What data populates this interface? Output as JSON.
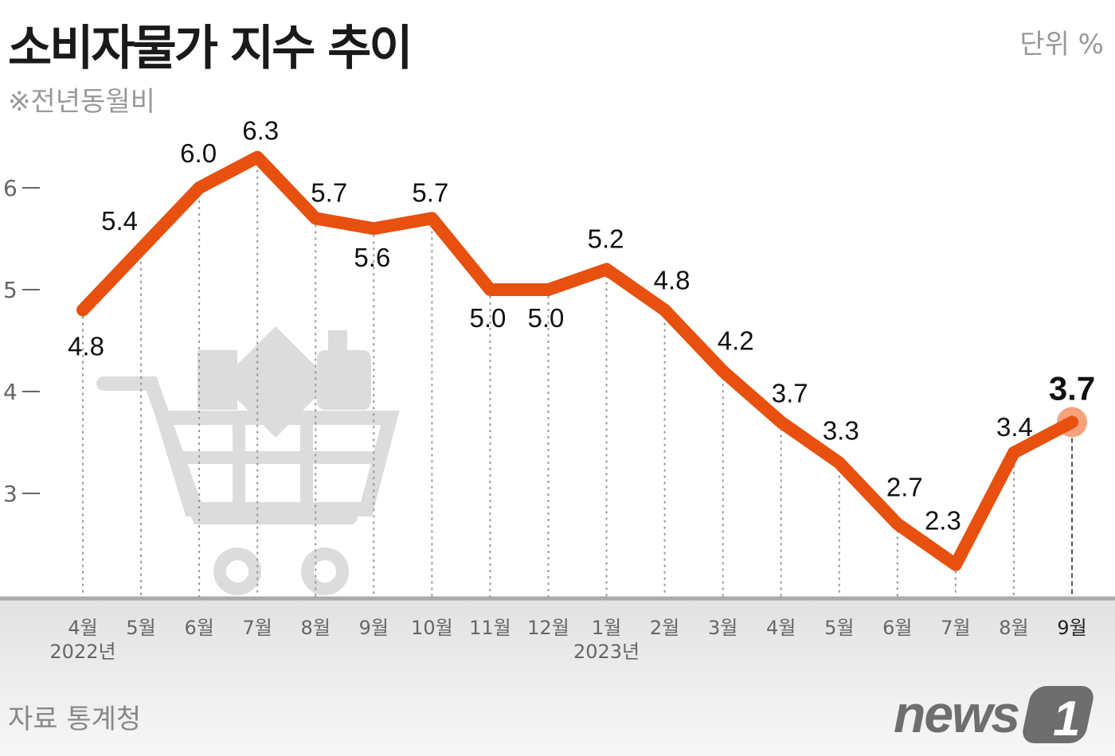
{
  "title": "소비자물가 지수 추이",
  "subtitle": "※전년동월비",
  "unit": "단위 %",
  "source": "자료 통계청",
  "logo_text": "news1",
  "colors": {
    "line": "#e8500f",
    "highlight": "#f4a27e",
    "axis": "#aaaaaa",
    "illustration": "#dcdcdc"
  },
  "chart_data": {
    "type": "line",
    "categories": [
      "4월",
      "5월",
      "6월",
      "7월",
      "8월",
      "9월",
      "10월",
      "11월",
      "12월",
      "1월",
      "2월",
      "3월",
      "4월",
      "5월",
      "6월",
      "7월",
      "8월",
      "9월"
    ],
    "year_labels": [
      {
        "index": 0,
        "label": "2022년"
      },
      {
        "index": 9,
        "label": "2023년"
      }
    ],
    "values": [
      4.8,
      5.4,
      6.0,
      6.3,
      5.7,
      5.6,
      5.7,
      5.0,
      5.0,
      5.2,
      4.8,
      4.2,
      3.7,
      3.3,
      2.7,
      2.3,
      3.4,
      3.7
    ],
    "value_labels": [
      "4.8",
      "5.4",
      "6.0",
      "6.3",
      "5.7",
      "5.6",
      "5.7",
      "5.0",
      "5.0",
      "5.2",
      "4.8",
      "4.2",
      "3.7",
      "3.3",
      "2.7",
      "2.3",
      "3.4",
      "3.7"
    ],
    "yticks": [
      "3",
      "4",
      "5",
      "6"
    ],
    "ylim": [
      2,
      6.5
    ],
    "highlight_index": 17,
    "grid": "vertical dotted"
  }
}
